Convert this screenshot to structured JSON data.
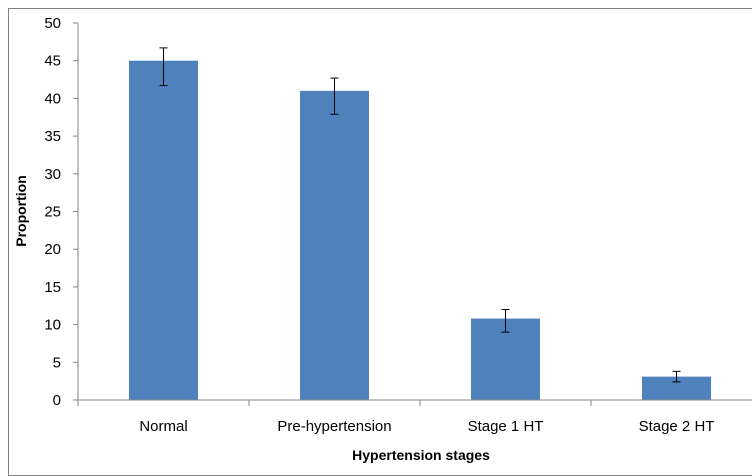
{
  "chart_data": {
    "type": "bar",
    "title": "",
    "xlabel": "Hypertension stages",
    "ylabel": "Proportion",
    "categories": [
      "Normal",
      "Pre-hypertension",
      "Stage 1 HT",
      "Stage 2 HT"
    ],
    "values": [
      45,
      41,
      10.8,
      3.1
    ],
    "error_low": [
      41.7,
      37.9,
      9.0,
      2.4
    ],
    "error_high": [
      46.7,
      42.7,
      12.0,
      3.8
    ],
    "ylim": [
      0,
      50
    ],
    "yticks": [
      0,
      5,
      10,
      15,
      20,
      25,
      30,
      35,
      40,
      45,
      50
    ],
    "grid": false,
    "legend": "none",
    "bar_color": "#4f81bd"
  }
}
